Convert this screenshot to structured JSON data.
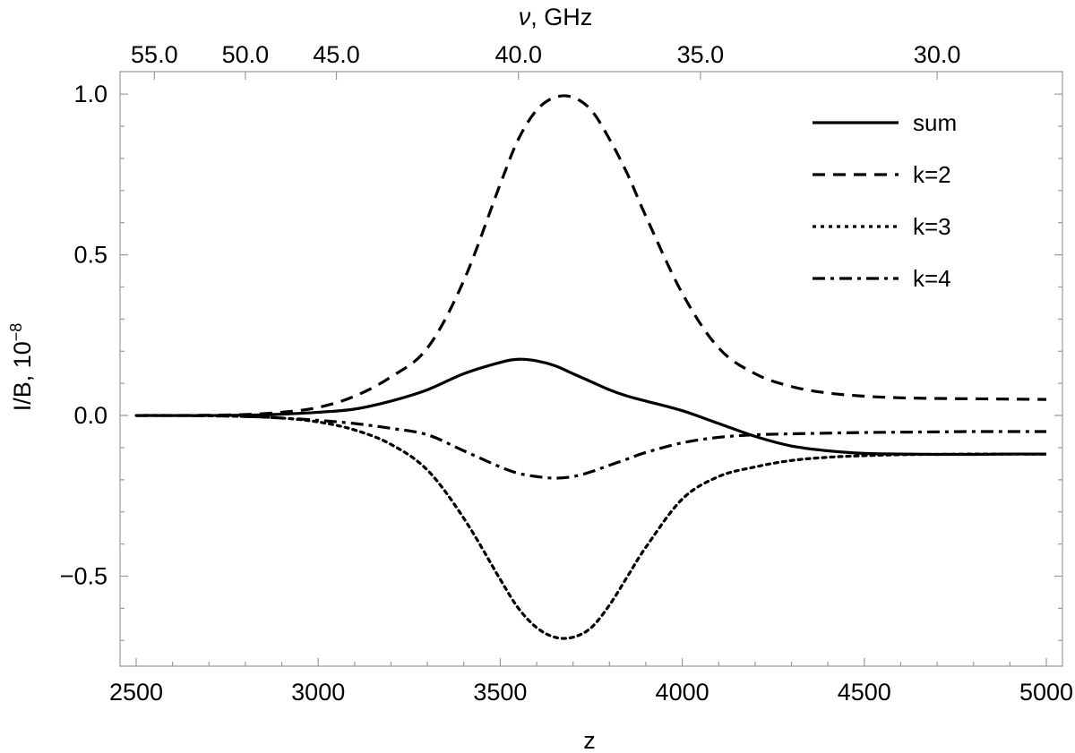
{
  "chart_data": {
    "type": "line",
    "xlabel": "z",
    "ylabel": "I/B, 10",
    "ylabel_exponent": "−8",
    "top_axis_label_var": "ν",
    "top_axis_label_unit": ", GHz",
    "xlim": [
      2500,
      5000
    ],
    "ylim": [
      -0.78,
      1.07
    ],
    "x_ticks": [
      2500,
      3000,
      3500,
      4000,
      4500,
      5000
    ],
    "x_tick_labels": [
      "2500",
      "3000",
      "3500",
      "4000",
      "4500",
      "5000"
    ],
    "y_ticks": [
      -0.5,
      0.0,
      0.5,
      1.0
    ],
    "y_tick_labels": [
      "−0.5",
      "0.0",
      "0.5",
      "1.0"
    ],
    "top_ticks_z": [
      2550,
      2800,
      3050,
      3550,
      4050,
      4700
    ],
    "top_tick_labels": [
      "55.0",
      "50.0",
      "45.0",
      "40.0",
      "35.0",
      "30.0"
    ],
    "grid": false,
    "legend_position": "top-right",
    "x": [
      2500,
      2600,
      2700,
      2800,
      2900,
      3000,
      3100,
      3200,
      3300,
      3400,
      3500,
      3550,
      3600,
      3650,
      3700,
      3750,
      3800,
      3850,
      3900,
      4000,
      4100,
      4200,
      4300,
      4400,
      4500,
      4600,
      4700,
      4800,
      4900,
      5000
    ],
    "series": [
      {
        "name": "sum",
        "dash": "solid",
        "values": [
          0.0,
          0.0,
          0.0,
          0.001,
          0.004,
          0.01,
          0.02,
          0.045,
          0.08,
          0.13,
          0.165,
          0.175,
          0.17,
          0.155,
          0.13,
          0.105,
          0.08,
          0.06,
          0.045,
          0.015,
          -0.025,
          -0.065,
          -0.095,
          -0.11,
          -0.118,
          -0.12,
          -0.121,
          -0.121,
          -0.12,
          -0.12
        ]
      },
      {
        "name": "k=2",
        "dash": "dashed",
        "values": [
          0.0,
          0.0,
          0.001,
          0.003,
          0.01,
          0.025,
          0.06,
          0.12,
          0.21,
          0.42,
          0.72,
          0.86,
          0.95,
          0.99,
          0.99,
          0.95,
          0.86,
          0.75,
          0.62,
          0.38,
          0.21,
          0.13,
          0.09,
          0.07,
          0.06,
          0.055,
          0.053,
          0.052,
          0.051,
          0.05
        ]
      },
      {
        "name": "k=3",
        "dash": "dotted",
        "values": [
          0.0,
          0.0,
          -0.001,
          -0.003,
          -0.008,
          -0.02,
          -0.045,
          -0.09,
          -0.17,
          -0.32,
          -0.51,
          -0.6,
          -0.66,
          -0.69,
          -0.69,
          -0.66,
          -0.59,
          -0.5,
          -0.41,
          -0.26,
          -0.19,
          -0.16,
          -0.14,
          -0.13,
          -0.125,
          -0.122,
          -0.121,
          -0.12,
          -0.12,
          -0.12
        ]
      },
      {
        "name": "k=4",
        "dash": "dashdot",
        "values": [
          0.0,
          0.0,
          -0.001,
          -0.003,
          -0.008,
          -0.015,
          -0.025,
          -0.04,
          -0.06,
          -0.11,
          -0.16,
          -0.18,
          -0.19,
          -0.195,
          -0.19,
          -0.175,
          -0.155,
          -0.135,
          -0.115,
          -0.085,
          -0.068,
          -0.06,
          -0.057,
          -0.055,
          -0.053,
          -0.052,
          -0.051,
          -0.05,
          -0.05,
          -0.05
        ]
      }
    ]
  }
}
